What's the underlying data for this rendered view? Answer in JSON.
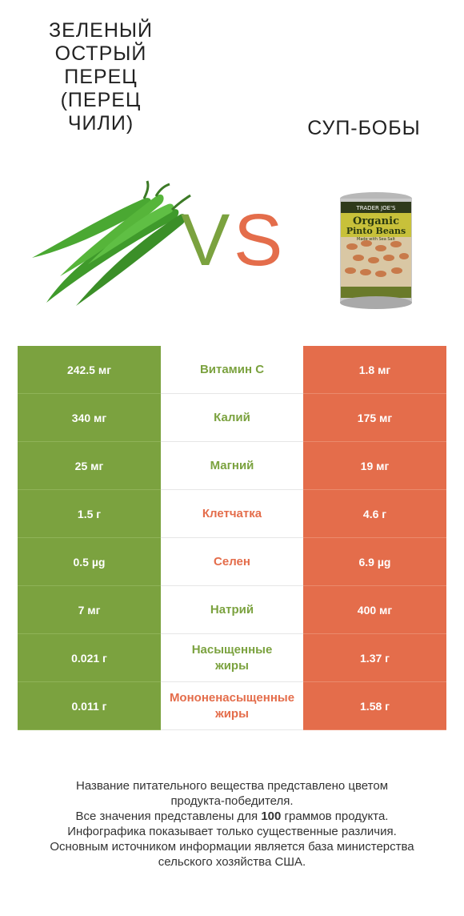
{
  "header": {
    "left_title": "Зеленый острый перец (перец чили)",
    "right_title": "Суп-бобы",
    "vs_v": "V",
    "vs_s": "S",
    "can_label": {
      "brand": "TRADER JOE'S",
      "line1": "Organic",
      "line2": "Pinto Beans",
      "line3": "Made with Sea Salt"
    }
  },
  "colors": {
    "left": "#7ba23f",
    "right": "#e46d4b",
    "left_winner_text": "#7ba23f",
    "right_winner_text": "#e46d4b"
  },
  "rows": [
    {
      "left": "242.5 мг",
      "name": "Витамин C",
      "right": "1.8 мг",
      "winner": "left"
    },
    {
      "left": "340 мг",
      "name": "Калий",
      "right": "175 мг",
      "winner": "left"
    },
    {
      "left": "25 мг",
      "name": "Магний",
      "right": "19 мг",
      "winner": "left"
    },
    {
      "left": "1.5 г",
      "name": "Клетчатка",
      "right": "4.6 г",
      "winner": "right"
    },
    {
      "left": "0.5 µg",
      "name": "Селен",
      "right": "6.9 µg",
      "winner": "right"
    },
    {
      "left": "7 мг",
      "name": "Натрий",
      "right": "400 мг",
      "winner": "left"
    },
    {
      "left": "0.021 г",
      "name_line1": "Насыщенные",
      "name_line2": "жиры",
      "right": "1.37 г",
      "winner": "left"
    },
    {
      "left": "0.011 г",
      "name_line1": "Мононенасыщенные",
      "name_line2": "жиры",
      "right": "1.58 г",
      "winner": "right"
    }
  ],
  "footer": {
    "line1": "Название питательного вещества представлено цветом",
    "line2": "продукта-победителя.",
    "line3_pre": "Все значения представлены для ",
    "line3_bold": "100",
    "line3_post": " граммов продукта.",
    "line4": "Инфографика показывает только существенные различия.",
    "line5": "Основным источником информации является база министерства",
    "line6": "сельского хозяйства США."
  }
}
